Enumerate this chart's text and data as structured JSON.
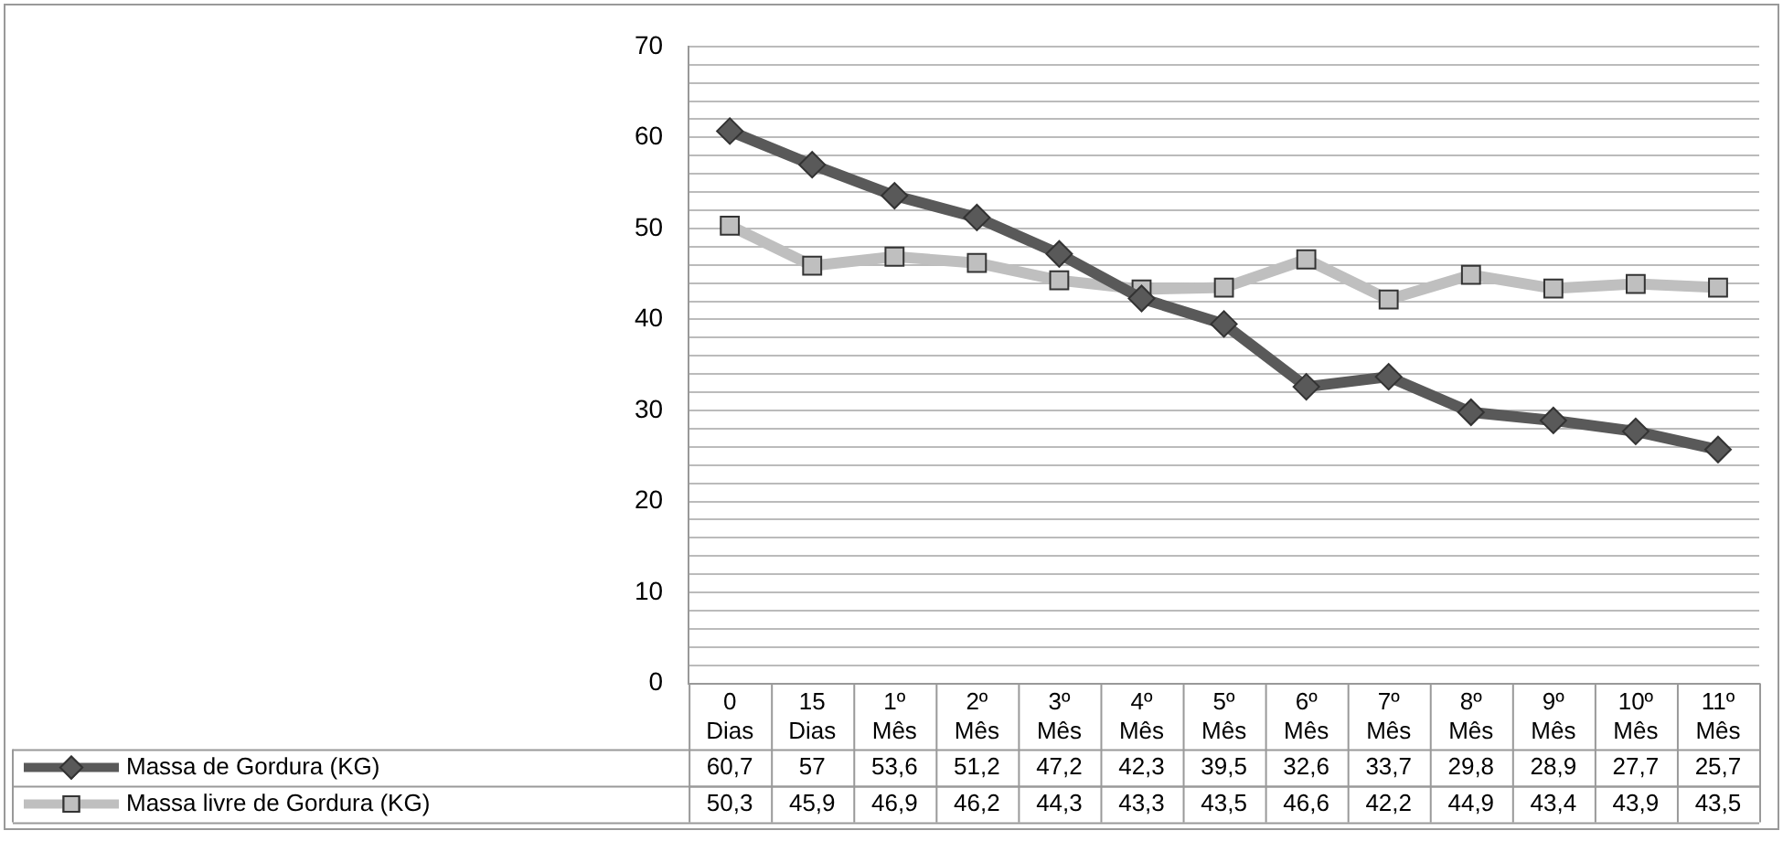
{
  "chart_data": {
    "type": "line",
    "categories": [
      "0 Dias",
      "15 Dias",
      "1º Mês",
      "2º Mês",
      "3º Mês",
      "4º Mês",
      "5º Mês",
      "6º Mês",
      "7º Mês",
      "8º Mês",
      "9º Mês",
      "10º Mês",
      "11º Mês"
    ],
    "series": [
      {
        "name": "Massa de Gordura (KG)",
        "color": "#595959",
        "marker": "diamond",
        "values": [
          60.7,
          57,
          53.6,
          51.2,
          47.2,
          42.3,
          39.5,
          32.6,
          33.7,
          29.8,
          28.9,
          27.7,
          25.7
        ],
        "value_labels": [
          "60,7",
          "57",
          "53,6",
          "51,2",
          "47,2",
          "42,3",
          "39,5",
          "32,6",
          "33,7",
          "29,8",
          "28,9",
          "27,7",
          "25,7"
        ]
      },
      {
        "name": "Massa livre de Gordura (KG)",
        "color": "#bfbfbf",
        "marker": "square",
        "values": [
          50.3,
          45.9,
          46.9,
          46.2,
          44.3,
          43.3,
          43.5,
          46.6,
          42.2,
          44.9,
          43.4,
          43.9,
          43.5
        ],
        "value_labels": [
          "50,3",
          "45,9",
          "46,9",
          "46,2",
          "44,3",
          "43,3",
          "43,5",
          "46,6",
          "42,2",
          "44,9",
          "43,4",
          "43,9",
          "43,5"
        ]
      }
    ],
    "ylim": [
      0,
      70
    ],
    "yticks": [
      0,
      {
        "value": 2,
        "label": null
      },
      {
        "value": 4,
        "label": null
      },
      {
        "value": 6,
        "label": null
      },
      {
        "value": 8,
        "label": null
      },
      10,
      {
        "value": 12,
        "label": null
      },
      {
        "value": 14,
        "label": null
      },
      {
        "value": 16,
        "label": null
      },
      {
        "value": 18,
        "label": null
      },
      20,
      {
        "value": 22,
        "label": null
      },
      {
        "value": 24,
        "label": null
      },
      {
        "value": 26,
        "label": null
      },
      {
        "value": 28,
        "label": null
      },
      30,
      {
        "value": 32,
        "label": null
      },
      {
        "value": 34,
        "label": null
      },
      {
        "value": 36,
        "label": null
      },
      {
        "value": 38,
        "label": null
      },
      40,
      {
        "value": 42,
        "label": null
      },
      {
        "value": 44,
        "label": null
      },
      {
        "value": 46,
        "label": null
      },
      {
        "value": 48,
        "label": null
      },
      50,
      {
        "value": 52,
        "label": null
      },
      {
        "value": 54,
        "label": null
      },
      {
        "value": 56,
        "label": null
      },
      {
        "value": 58,
        "label": null
      },
      60,
      {
        "value": 62,
        "label": null
      },
      {
        "value": 64,
        "label": null
      },
      {
        "value": 66,
        "label": null
      },
      {
        "value": 68,
        "label": null
      },
      70
    ],
    "grid": "y",
    "legend": "bottom left",
    "line_style": "solid"
  }
}
